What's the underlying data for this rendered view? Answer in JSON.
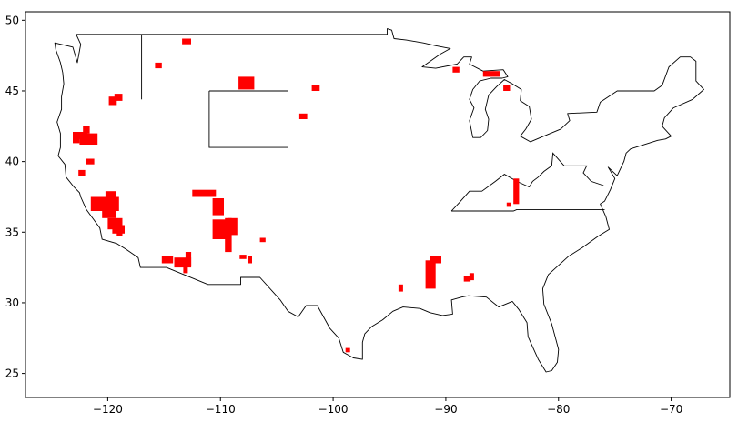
{
  "chart_data": {
    "type": "map",
    "xlim": [
      -127.3,
      -64.8
    ],
    "ylim": [
      23.3,
      50.6
    ],
    "x_ticks": [
      -120,
      -110,
      -100,
      -90,
      -80,
      -70
    ],
    "y_ticks": [
      25,
      30,
      35,
      40,
      45,
      50
    ],
    "x_tick_labels": [
      "−120",
      "−110",
      "−100",
      "−90",
      "−80",
      "−70"
    ],
    "y_tick_labels": [
      "25",
      "30",
      "35",
      "40",
      "45",
      "50"
    ],
    "outline_color": "#000000",
    "highlight_color": "#ff0000",
    "outline": [
      [
        -124.7,
        48.4
      ],
      [
        -123.1,
        48.1
      ],
      [
        -122.7,
        47.0
      ],
      [
        -122.4,
        48.3
      ],
      [
        -122.8,
        49.0
      ],
      [
        -117.0,
        49.0
      ],
      [
        -104.0,
        49.0
      ],
      [
        -95.2,
        49.0
      ],
      [
        -95.2,
        49.4
      ],
      [
        -94.8,
        49.3
      ],
      [
        -94.6,
        48.7
      ],
      [
        -93.5,
        48.6
      ],
      [
        -92.0,
        48.4
      ],
      [
        -90.9,
        48.2
      ],
      [
        -89.6,
        48.0
      ],
      [
        -90.5,
        47.6
      ],
      [
        -92.1,
        46.7
      ],
      [
        -90.9,
        46.6
      ],
      [
        -89.0,
        46.9
      ],
      [
        -88.4,
        47.4
      ],
      [
        -87.7,
        47.4
      ],
      [
        -87.9,
        46.9
      ],
      [
        -86.7,
        46.4
      ],
      [
        -84.9,
        46.5
      ],
      [
        -84.5,
        46.0
      ],
      [
        -85.0,
        45.9
      ],
      [
        -86.0,
        45.9
      ],
      [
        -87.0,
        45.7
      ],
      [
        -87.6,
        45.1
      ],
      [
        -87.9,
        44.4
      ],
      [
        -87.5,
        43.8
      ],
      [
        -87.9,
        42.9
      ],
      [
        -87.6,
        41.7
      ],
      [
        -86.9,
        41.7
      ],
      [
        -86.3,
        42.2
      ],
      [
        -86.2,
        43.0
      ],
      [
        -86.5,
        43.7
      ],
      [
        -86.2,
        44.7
      ],
      [
        -85.5,
        45.3
      ],
      [
        -84.8,
        45.8
      ],
      [
        -84.1,
        45.5
      ],
      [
        -83.3,
        45.1
      ],
      [
        -83.4,
        44.3
      ],
      [
        -82.6,
        43.9
      ],
      [
        -82.4,
        43.0
      ],
      [
        -82.9,
        42.3
      ],
      [
        -83.4,
        41.8
      ],
      [
        -82.5,
        41.4
      ],
      [
        -81.0,
        41.9
      ],
      [
        -79.8,
        42.3
      ],
      [
        -79.0,
        42.9
      ],
      [
        -79.2,
        43.4
      ],
      [
        -76.6,
        43.5
      ],
      [
        -76.3,
        44.2
      ],
      [
        -74.8,
        45.0
      ],
      [
        -71.5,
        45.0
      ],
      [
        -70.8,
        45.4
      ],
      [
        -70.2,
        46.7
      ],
      [
        -69.2,
        47.4
      ],
      [
        -68.3,
        47.4
      ],
      [
        -67.8,
        47.1
      ],
      [
        -67.8,
        45.7
      ],
      [
        -67.1,
        45.1
      ],
      [
        -68.1,
        44.4
      ],
      [
        -69.8,
        43.8
      ],
      [
        -70.6,
        43.1
      ],
      [
        -70.8,
        42.5
      ],
      [
        -70.0,
        41.8
      ],
      [
        -70.5,
        41.6
      ],
      [
        -71.2,
        41.5
      ],
      [
        -72.0,
        41.3
      ],
      [
        -73.6,
        40.9
      ],
      [
        -74.0,
        40.6
      ],
      [
        -74.2,
        40.0
      ],
      [
        -74.8,
        39.0
      ],
      [
        -75.6,
        39.6
      ],
      [
        -75.0,
        38.8
      ],
      [
        -75.4,
        38.0
      ],
      [
        -75.9,
        37.2
      ],
      [
        -76.3,
        37.0
      ],
      [
        -75.8,
        36.1
      ],
      [
        -75.5,
        35.2
      ],
      [
        -76.5,
        34.7
      ],
      [
        -77.9,
        33.9
      ],
      [
        -79.1,
        33.3
      ],
      [
        -80.2,
        32.5
      ],
      [
        -80.9,
        32.0
      ],
      [
        -81.4,
        31.0
      ],
      [
        -81.3,
        29.9
      ],
      [
        -80.6,
        28.5
      ],
      [
        -80.0,
        26.7
      ],
      [
        -80.1,
        25.8
      ],
      [
        -80.6,
        25.2
      ],
      [
        -81.1,
        25.1
      ],
      [
        -81.8,
        26.0
      ],
      [
        -82.7,
        27.6
      ],
      [
        -82.8,
        28.6
      ],
      [
        -83.5,
        29.5
      ],
      [
        -84.1,
        30.1
      ],
      [
        -85.3,
        29.7
      ],
      [
        -86.4,
        30.4
      ],
      [
        -88.0,
        30.5
      ],
      [
        -88.6,
        30.4
      ],
      [
        -89.5,
        30.2
      ],
      [
        -89.4,
        29.2
      ],
      [
        -90.3,
        29.1
      ],
      [
        -91.4,
        29.3
      ],
      [
        -92.3,
        29.6
      ],
      [
        -93.8,
        29.7
      ],
      [
        -94.7,
        29.4
      ],
      [
        -95.6,
        28.8
      ],
      [
        -96.6,
        28.3
      ],
      [
        -97.2,
        27.8
      ],
      [
        -97.4,
        27.2
      ],
      [
        -97.4,
        26.0
      ],
      [
        -98.2,
        26.1
      ],
      [
        -99.1,
        26.5
      ],
      [
        -99.5,
        27.5
      ],
      [
        -100.3,
        28.2
      ],
      [
        -101.4,
        29.8
      ],
      [
        -102.4,
        29.8
      ],
      [
        -103.1,
        29.0
      ],
      [
        -104.0,
        29.4
      ],
      [
        -104.7,
        30.2
      ],
      [
        -106.5,
        31.8
      ],
      [
        -108.2,
        31.8
      ],
      [
        -108.2,
        31.3
      ],
      [
        -111.1,
        31.3
      ],
      [
        -114.8,
        32.5
      ],
      [
        -117.1,
        32.5
      ],
      [
        -117.3,
        33.2
      ],
      [
        -118.4,
        33.8
      ],
      [
        -119.2,
        34.2
      ],
      [
        -120.5,
        34.5
      ],
      [
        -120.7,
        35.3
      ],
      [
        -121.9,
        36.6
      ],
      [
        -122.4,
        37.5
      ],
      [
        -122.5,
        37.8
      ],
      [
        -123.0,
        38.2
      ],
      [
        -123.7,
        38.9
      ],
      [
        -123.8,
        39.8
      ],
      [
        -124.4,
        40.4
      ],
      [
        -124.2,
        41.0
      ],
      [
        -124.2,
        42.0
      ],
      [
        -124.5,
        42.8
      ],
      [
        -124.1,
        43.7
      ],
      [
        -124.1,
        44.6
      ],
      [
        -123.9,
        45.5
      ],
      [
        -124.0,
        46.3
      ],
      [
        -124.2,
        47.0
      ],
      [
        -124.6,
        47.9
      ],
      [
        -124.7,
        48.4
      ]
    ],
    "boundary_lines": [
      [
        [
          -117.0,
          49.0
        ],
        [
          -117.0,
          44.4
        ]
      ],
      [
        [
          -111.0,
          45.0
        ],
        [
          -104.0,
          45.0
        ],
        [
          -104.0,
          41.0
        ],
        [
          -111.0,
          41.0
        ],
        [
          -111.0,
          45.0
        ]
      ],
      [
        [
          -89.5,
          36.5
        ],
        [
          -84.0,
          36.5
        ],
        [
          -83.7,
          36.6
        ],
        [
          -80.0,
          36.6
        ],
        [
          -75.9,
          36.6
        ]
      ],
      [
        [
          -82.6,
          38.2
        ],
        [
          -82.3,
          38.6
        ],
        [
          -81.8,
          38.9
        ],
        [
          -81.3,
          39.3
        ],
        [
          -80.6,
          39.7
        ],
        [
          -80.5,
          40.6
        ],
        [
          -79.5,
          39.7
        ],
        [
          -77.5,
          39.7
        ],
        [
          -77.8,
          39.2
        ],
        [
          -77.1,
          38.6
        ],
        [
          -76.0,
          38.3
        ]
      ],
      [
        [
          -89.5,
          36.5
        ],
        [
          -88.8,
          37.1
        ],
        [
          -87.9,
          37.9
        ],
        [
          -86.8,
          37.9
        ],
        [
          -85.6,
          38.6
        ],
        [
          -84.8,
          39.1
        ],
        [
          -83.7,
          38.6
        ],
        [
          -82.6,
          38.2
        ]
      ]
    ],
    "highlight_cells": [
      [
        -113.4,
        48.3,
        0.8,
        0.4
      ],
      [
        -115.8,
        46.6,
        0.6,
        0.4
      ],
      [
        -108.4,
        45.1,
        1.4,
        0.9
      ],
      [
        -101.9,
        45.0,
        0.7,
        0.4
      ],
      [
        -103.0,
        43.0,
        0.7,
        0.4
      ],
      [
        -89.4,
        46.3,
        0.6,
        0.4
      ],
      [
        -86.7,
        46.0,
        1.5,
        0.4
      ],
      [
        -84.9,
        45.0,
        0.6,
        0.4
      ],
      [
        -119.9,
        44.0,
        0.7,
        0.6
      ],
      [
        -119.4,
        44.3,
        0.7,
        0.5
      ],
      [
        -122.2,
        42.0,
        0.6,
        0.5
      ],
      [
        -123.1,
        41.6,
        1.3,
        0.5
      ],
      [
        -122.5,
        41.2,
        1.6,
        0.8
      ],
      [
        -123.1,
        41.3,
        0.6,
        0.4
      ],
      [
        -121.9,
        39.8,
        0.7,
        0.4
      ],
      [
        -122.6,
        39.0,
        0.6,
        0.4
      ],
      [
        -120.5,
        36.0,
        1.2,
        1.5
      ],
      [
        -121.5,
        36.5,
        2.5,
        1.0
      ],
      [
        -120.2,
        37.4,
        0.9,
        0.5
      ],
      [
        -120.0,
        35.2,
        1.3,
        0.8
      ],
      [
        -119.6,
        34.9,
        1.1,
        0.6
      ],
      [
        -119.2,
        34.7,
        0.5,
        0.4
      ],
      [
        -112.5,
        37.5,
        2.1,
        0.5
      ],
      [
        -110.7,
        36.2,
        1.0,
        1.2
      ],
      [
        -110.7,
        34.5,
        1.3,
        1.4
      ],
      [
        -109.6,
        33.6,
        0.6,
        2.4
      ],
      [
        -109.3,
        34.8,
        0.8,
        1.2
      ],
      [
        -108.3,
        33.1,
        0.6,
        0.3
      ],
      [
        -107.6,
        32.8,
        0.4,
        0.5
      ],
      [
        -106.5,
        34.3,
        0.5,
        0.3
      ],
      [
        -115.2,
        32.8,
        1.0,
        0.5
      ],
      [
        -114.1,
        32.5,
        1.5,
        0.7
      ],
      [
        -113.3,
        32.1,
        0.4,
        0.5
      ],
      [
        -113.1,
        32.6,
        0.5,
        1.0
      ],
      [
        -84.0,
        37.0,
        0.5,
        1.8
      ],
      [
        -84.6,
        36.8,
        0.4,
        0.3
      ],
      [
        -91.8,
        31.0,
        0.9,
        2.0
      ],
      [
        -91.4,
        32.8,
        1.0,
        0.5
      ],
      [
        -88.4,
        31.5,
        0.6,
        0.4
      ],
      [
        -87.9,
        31.6,
        0.4,
        0.5
      ],
      [
        -94.2,
        30.8,
        0.4,
        0.5
      ],
      [
        -98.9,
        26.5,
        0.4,
        0.3
      ]
    ]
  }
}
